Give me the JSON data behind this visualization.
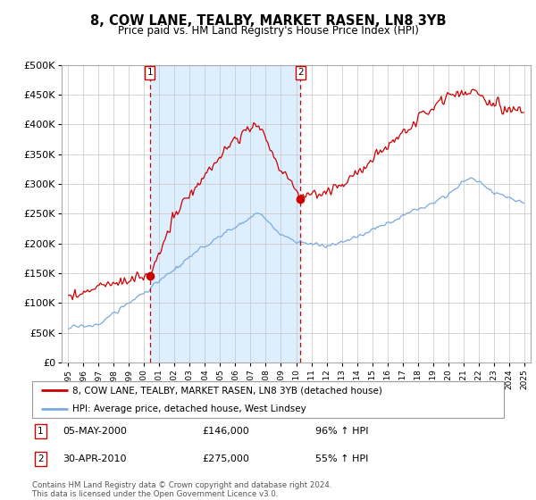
{
  "title": "8, COW LANE, TEALBY, MARKET RASEN, LN8 3YB",
  "subtitle": "Price paid vs. HM Land Registry's House Price Index (HPI)",
  "sale1_date": "05-MAY-2000",
  "sale1_price": 146000,
  "sale1_label": "96% ↑ HPI",
  "sale1_year": 2000.35,
  "sale2_date": "30-APR-2010",
  "sale2_price": 275000,
  "sale2_label": "55% ↑ HPI",
  "sale2_year": 2010.33,
  "ylim_max": 500000,
  "ylim_min": 0,
  "red_color": "#cc0000",
  "blue_color": "#7aaadd",
  "bg_shading_color": "#ddeeff",
  "grid_color": "#cccccc",
  "legend_line1": "8, COW LANE, TEALBY, MARKET RASEN, LN8 3YB (detached house)",
  "legend_line2": "HPI: Average price, detached house, West Lindsey",
  "footer": "Contains HM Land Registry data © Crown copyright and database right 2024.\nThis data is licensed under the Open Government Licence v3.0."
}
